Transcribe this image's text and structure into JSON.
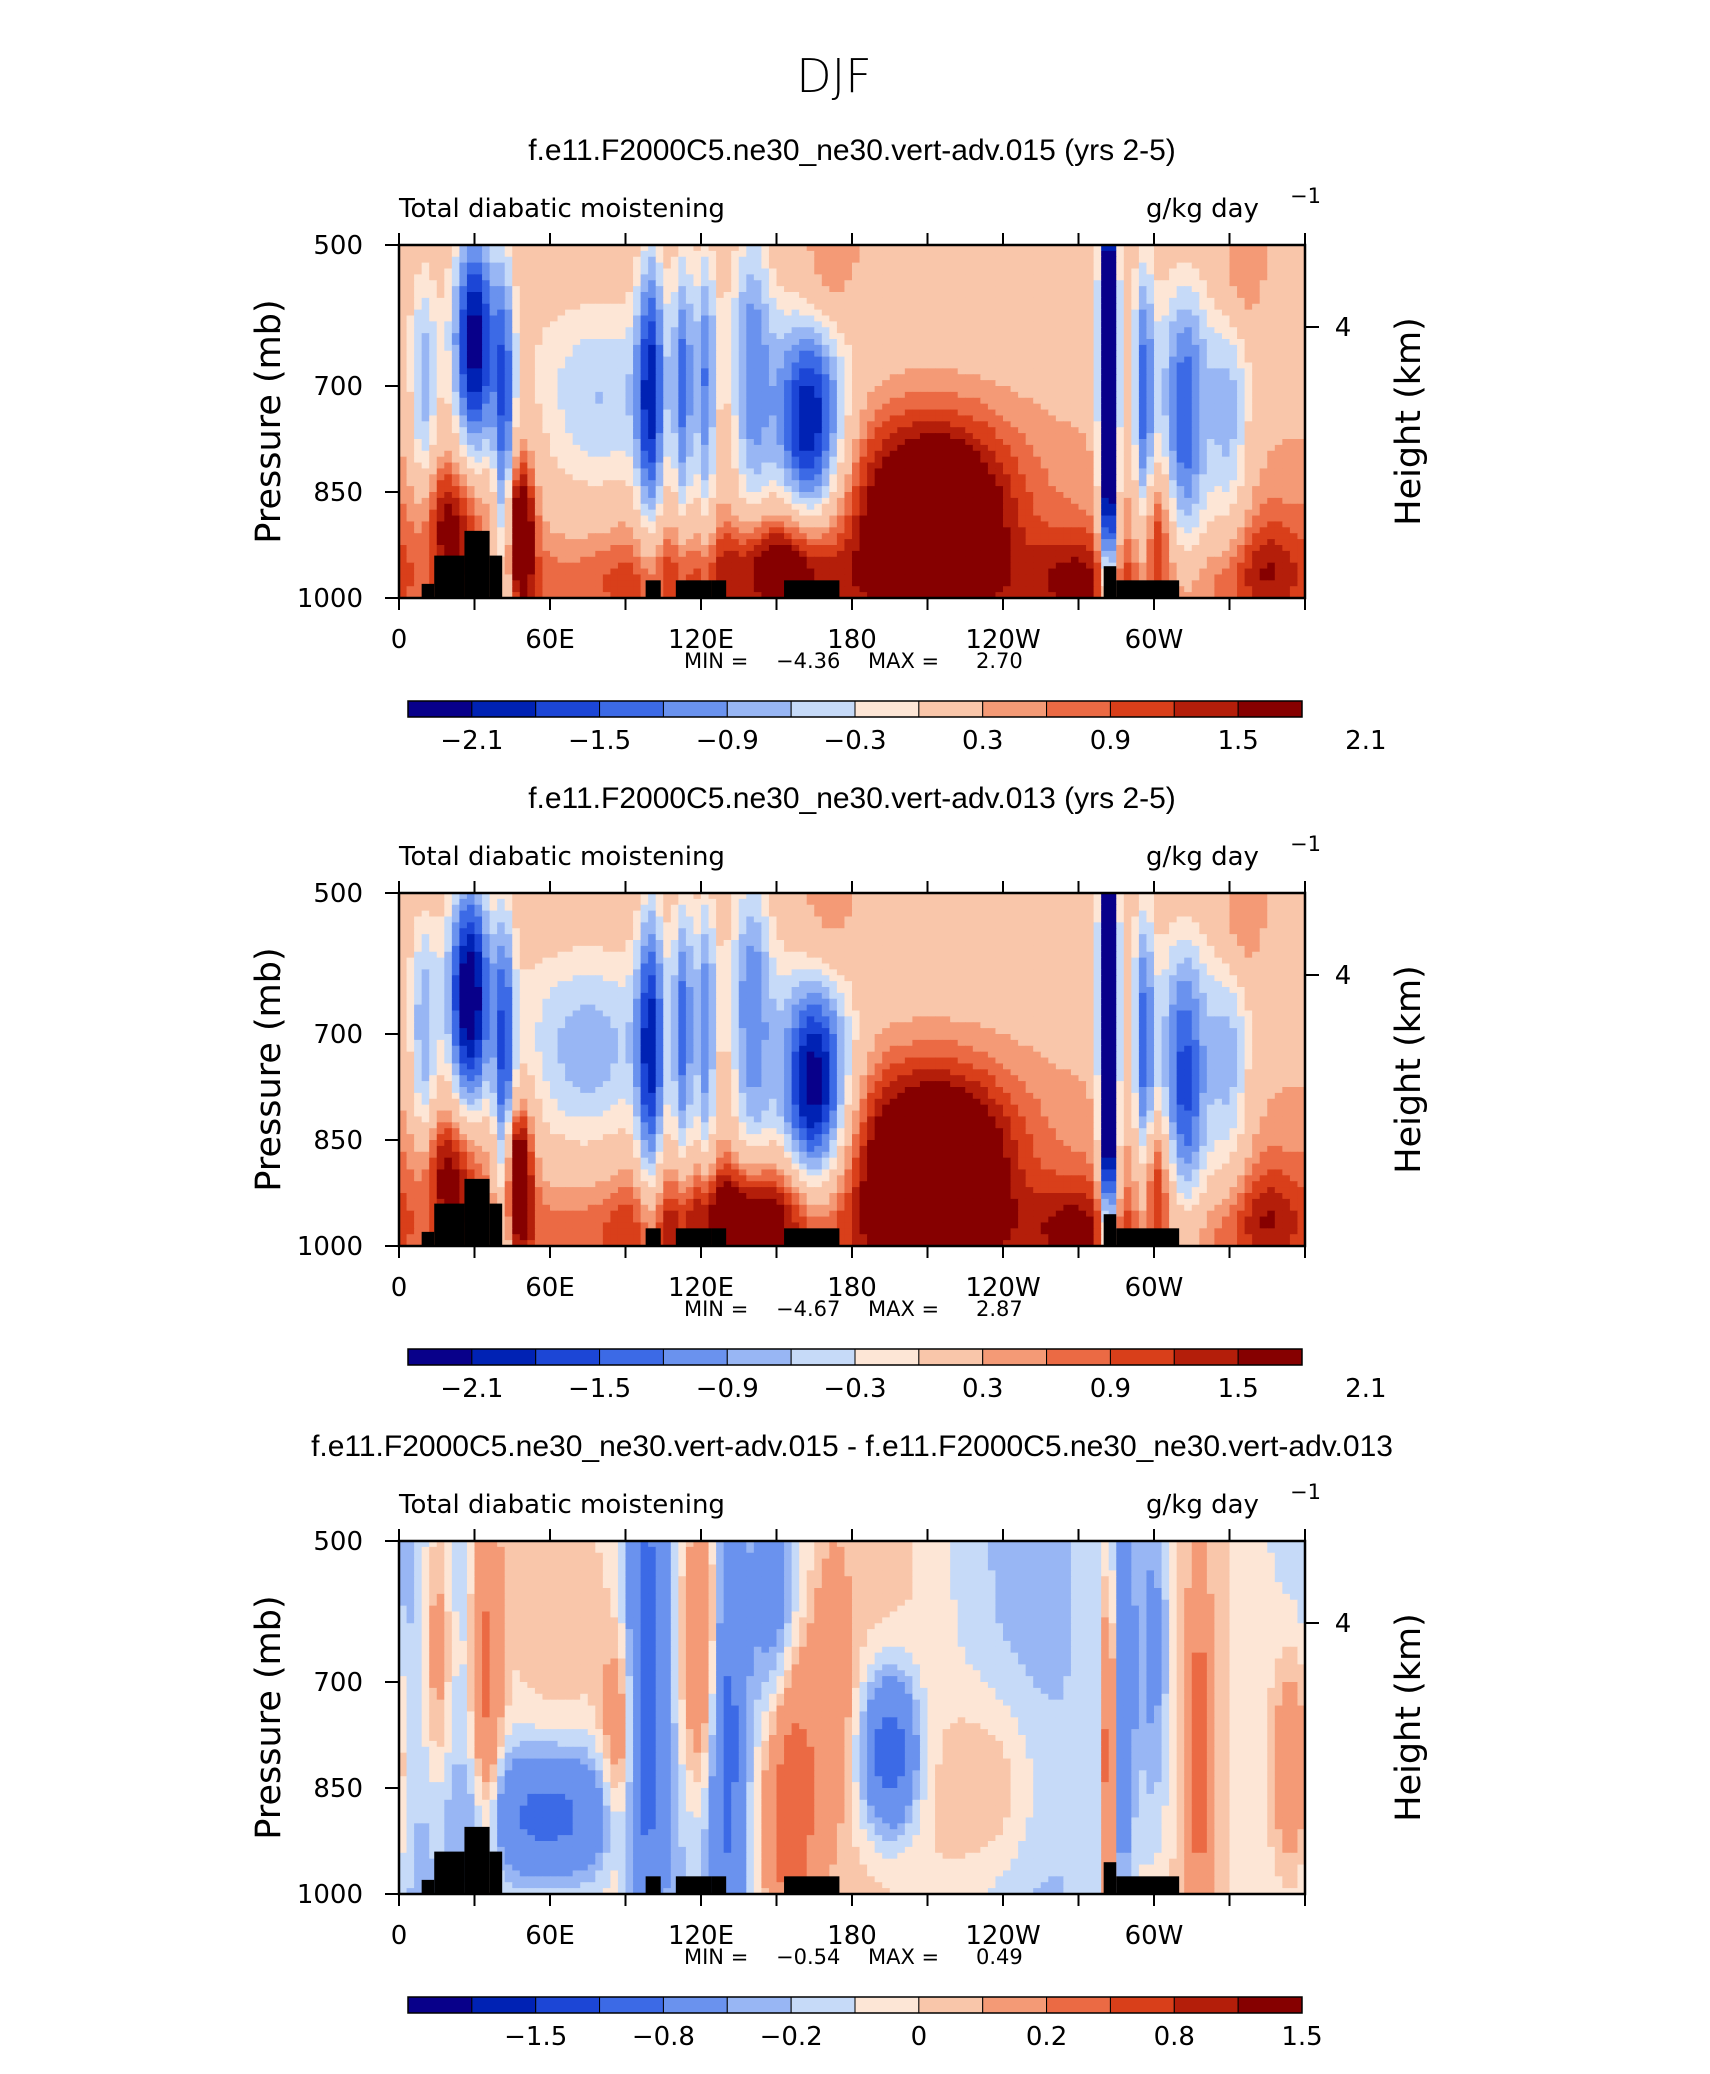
{
  "figure_title": "DJF",
  "chart_data": [
    {
      "type": "heatmap",
      "title": "f.e11.F2000C5.ne30_ne30.vert-adv.015 (yrs 2-5)",
      "left_label": "Total diabatic moistening",
      "units_label": "g/kg day",
      "units_exponent": "−1",
      "ylabel": "Pressure (mb)",
      "ylabel_right": "Height (km)",
      "yticks": [
        "500",
        "700",
        "850",
        "1000"
      ],
      "yticks_right": [
        "4"
      ],
      "xticks": [
        "0",
        "60E",
        "120E",
        "180",
        "120W",
        "60W"
      ],
      "min_label": "MIN =",
      "min": "−4.36",
      "max_label": "MAX =",
      "max": "2.70",
      "colorbar_labels": [
        "−2.1",
        "−1.5",
        "−0.9",
        "−0.3",
        "0.3",
        "0.9",
        "1.5",
        "2.1"
      ],
      "features": [
        {
          "lon": 30,
          "p": 640,
          "a": -2.6,
          "wl": 6,
          "wp": 130
        },
        {
          "lon": 10,
          "p": 740,
          "a": -1.2,
          "wl": 4,
          "wp": 150
        },
        {
          "lon": 42,
          "p": 820,
          "a": -1.8,
          "wl": 3,
          "wp": 220
        },
        {
          "lon": 48,
          "p": 900,
          "a": 2.3,
          "wl": 4,
          "wp": 70
        },
        {
          "lon": 20,
          "p": 890,
          "a": 1.4,
          "wl": 10,
          "wp": 60
        },
        {
          "lon": 80,
          "p": 740,
          "a": -1.1,
          "wl": 20,
          "wp": 100
        },
        {
          "lon": 100,
          "p": 720,
          "a": -1.9,
          "wl": 4,
          "wp": 180
        },
        {
          "lon": 113,
          "p": 720,
          "a": -1.5,
          "wl": 3,
          "wp": 170
        },
        {
          "lon": 122,
          "p": 720,
          "a": -1.5,
          "wl": 3,
          "wp": 170
        },
        {
          "lon": 140,
          "p": 700,
          "a": -1.4,
          "wl": 6,
          "wp": 200
        },
        {
          "lon": 163,
          "p": 760,
          "a": -2.7,
          "wl": 10,
          "wp": 110
        },
        {
          "lon": 150,
          "p": 950,
          "a": 1.7,
          "wl": 15,
          "wp": 55
        },
        {
          "lon": 105,
          "p": 960,
          "a": 0.6,
          "wl": 15,
          "wp": 70
        },
        {
          "lon": 170,
          "p": 560,
          "a": 0.6,
          "wl": 8,
          "wp": 60
        },
        {
          "lon": 212,
          "p": 885,
          "a": 2.6,
          "wl": 22,
          "wp": 95
        },
        {
          "lon": 270,
          "p": 980,
          "a": 0.9,
          "wl": 12,
          "wp": 60
        },
        {
          "lon": 282,
          "p": 700,
          "a": -4.4,
          "wl": 2.5,
          "wp": 230
        },
        {
          "lon": 296,
          "p": 760,
          "a": -1.8,
          "wl": 3,
          "wp": 180
        },
        {
          "lon": 312,
          "p": 760,
          "a": -2.0,
          "wl": 7,
          "wp": 140
        },
        {
          "lon": 330,
          "p": 760,
          "a": -1.2,
          "wl": 6,
          "wp": 120
        },
        {
          "lon": 300,
          "p": 900,
          "a": 1.2,
          "wl": 5,
          "wp": 60
        },
        {
          "lon": 345,
          "p": 950,
          "a": 0.8,
          "wl": 10,
          "wp": 60
        },
        {
          "lon": 335,
          "p": 560,
          "a": 0.6,
          "wl": 6,
          "wp": 50
        }
      ]
    },
    {
      "type": "heatmap",
      "title": "f.e11.F2000C5.ne30_ne30.vert-adv.013 (yrs 2-5)",
      "left_label": "Total diabatic moistening",
      "units_label": "g/kg day",
      "units_exponent": "−1",
      "ylabel": "Pressure (mb)",
      "ylabel_right": "Height (km)",
      "yticks": [
        "500",
        "700",
        "850",
        "1000"
      ],
      "yticks_right": [
        "4"
      ],
      "xticks": [
        "0",
        "60E",
        "120E",
        "180",
        "120W",
        "60W"
      ],
      "min_label": "MIN =",
      "min": "−4.67",
      "max_label": "MAX =",
      "max": "2.87",
      "colorbar_labels": [
        "−2.1",
        "−1.5",
        "−0.9",
        "−0.3",
        "0.3",
        "0.9",
        "1.5",
        "2.1"
      ],
      "features": [
        {
          "lon": 28,
          "p": 650,
          "a": -2.8,
          "wl": 6,
          "wp": 130
        },
        {
          "lon": 10,
          "p": 740,
          "a": -1.3,
          "wl": 4,
          "wp": 150
        },
        {
          "lon": 42,
          "p": 820,
          "a": -1.9,
          "wl": 3,
          "wp": 220
        },
        {
          "lon": 47,
          "p": 900,
          "a": 2.5,
          "wl": 4,
          "wp": 70
        },
        {
          "lon": 20,
          "p": 890,
          "a": 1.5,
          "wl": 10,
          "wp": 60
        },
        {
          "lon": 75,
          "p": 740,
          "a": -1.3,
          "wl": 20,
          "wp": 100
        },
        {
          "lon": 100,
          "p": 740,
          "a": -2.0,
          "wl": 4,
          "wp": 180
        },
        {
          "lon": 113,
          "p": 720,
          "a": -1.6,
          "wl": 3,
          "wp": 170
        },
        {
          "lon": 122,
          "p": 720,
          "a": -1.5,
          "wl": 3,
          "wp": 170
        },
        {
          "lon": 140,
          "p": 700,
          "a": -1.5,
          "wl": 6,
          "wp": 200
        },
        {
          "lon": 165,
          "p": 780,
          "a": -3.0,
          "wl": 10,
          "wp": 110
        },
        {
          "lon": 140,
          "p": 950,
          "a": 1.8,
          "wl": 15,
          "wp": 55
        },
        {
          "lon": 105,
          "p": 960,
          "a": 0.7,
          "wl": 15,
          "wp": 70
        },
        {
          "lon": 170,
          "p": 560,
          "a": 0.5,
          "wl": 8,
          "wp": 60
        },
        {
          "lon": 212,
          "p": 890,
          "a": 2.8,
          "wl": 22,
          "wp": 95
        },
        {
          "lon": 270,
          "p": 980,
          "a": 0.9,
          "wl": 12,
          "wp": 60
        },
        {
          "lon": 282,
          "p": 700,
          "a": -4.6,
          "wl": 2.5,
          "wp": 230
        },
        {
          "lon": 296,
          "p": 760,
          "a": -1.8,
          "wl": 3,
          "wp": 180
        },
        {
          "lon": 312,
          "p": 780,
          "a": -2.2,
          "wl": 7,
          "wp": 140
        },
        {
          "lon": 330,
          "p": 760,
          "a": -1.2,
          "wl": 6,
          "wp": 120
        },
        {
          "lon": 300,
          "p": 900,
          "a": 1.3,
          "wl": 5,
          "wp": 60
        },
        {
          "lon": 345,
          "p": 950,
          "a": 0.8,
          "wl": 10,
          "wp": 60
        },
        {
          "lon": 335,
          "p": 560,
          "a": 0.6,
          "wl": 6,
          "wp": 50
        }
      ]
    },
    {
      "type": "heatmap",
      "title": "f.e11.F2000C5.ne30_ne30.vert-adv.015 - f.e11.F2000C5.ne30_ne30.vert-adv.013",
      "left_label": "Total diabatic moistening",
      "units_label": "g/kg day",
      "units_exponent": "−1",
      "ylabel": "Pressure (mb)",
      "ylabel_right": "Height (km)",
      "yticks": [
        "500",
        "700",
        "850",
        "1000"
      ],
      "yticks_right": [
        "4"
      ],
      "xticks": [
        "0",
        "60E",
        "120E",
        "180",
        "120W",
        "60W"
      ],
      "min_label": "MIN =",
      "min": "−0.54",
      "max_label": "MAX =",
      "max": "0.49",
      "colorbar_labels": [
        "−1.5",
        "−0.8",
        "−0.2",
        "0",
        "0.2",
        "0.8",
        "1.5"
      ],
      "features": [
        {
          "lon": 35,
          "p": 700,
          "a": 0.3,
          "wl": 4,
          "wp": 200
        },
        {
          "lon": 15,
          "p": 650,
          "a": 0.2,
          "wl": 4,
          "wp": 150
        },
        {
          "lon": 60,
          "p": 890,
          "a": -0.4,
          "wl": 20,
          "wp": 70
        },
        {
          "lon": 98,
          "p": 680,
          "a": -0.35,
          "wl": 6,
          "wp": 250
        },
        {
          "lon": 88,
          "p": 800,
          "a": 0.25,
          "wl": 5,
          "wp": 120
        },
        {
          "lon": 120,
          "p": 640,
          "a": 0.35,
          "wl": 6,
          "wp": 160
        },
        {
          "lon": 130,
          "p": 780,
          "a": -0.3,
          "wl": 5,
          "wp": 200
        },
        {
          "lon": 155,
          "p": 870,
          "a": 0.45,
          "wl": 8,
          "wp": 150
        },
        {
          "lon": 150,
          "p": 620,
          "a": -0.2,
          "wl": 6,
          "wp": 150
        },
        {
          "lon": 172,
          "p": 700,
          "a": 0.2,
          "wl": 5,
          "wp": 120
        },
        {
          "lon": 195,
          "p": 800,
          "a": -0.45,
          "wl": 8,
          "wp": 80
        },
        {
          "lon": 235,
          "p": 850,
          "a": 0.15,
          "wl": 15,
          "wp": 100
        },
        {
          "lon": 282,
          "p": 800,
          "a": 0.5,
          "wl": 1.5,
          "wp": 150
        },
        {
          "lon": 288,
          "p": 700,
          "a": -0.3,
          "wl": 3,
          "wp": 200
        },
        {
          "lon": 300,
          "p": 650,
          "a": -0.2,
          "wl": 5,
          "wp": 200
        },
        {
          "lon": 318,
          "p": 800,
          "a": 0.35,
          "wl": 3,
          "wp": 150
        },
        {
          "lon": 355,
          "p": 820,
          "a": 0.25,
          "wl": 6,
          "wp": 120
        }
      ]
    }
  ],
  "colorbar_colors": [
    "#08008a",
    "#0022b4",
    "#1c46d6",
    "#3c6ae6",
    "#6a92ee",
    "#98b6f4",
    "#c6daf8",
    "#fde6d6",
    "#f9c6aa",
    "#f49a76",
    "#eb6a44",
    "#d93f1a",
    "#b41e0a",
    "#860000"
  ],
  "topography_color": "#000000"
}
